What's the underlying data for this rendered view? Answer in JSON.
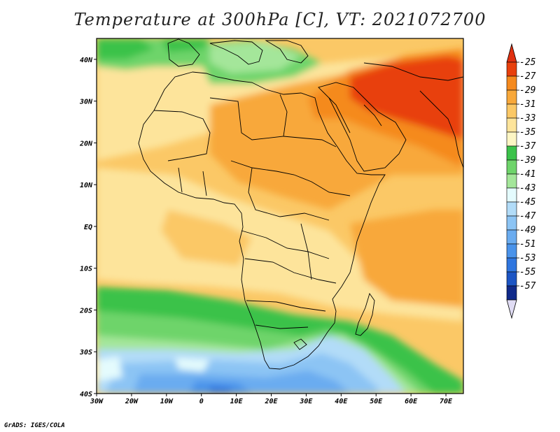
{
  "title": "Temperature at 300hPa [C], VT: 2021072700",
  "credit": "GrADS: IGES/COLA",
  "map": {
    "lon_range": [
      -30,
      75
    ],
    "lat_range": [
      -40,
      45
    ],
    "lon_ticks": [
      "30W",
      "20W",
      "10W",
      "0",
      "10E",
      "20E",
      "30E",
      "40E",
      "50E",
      "60E",
      "70E"
    ],
    "lat_ticks": [
      "40N",
      "30N",
      "20N",
      "10N",
      "EQ",
      "10S",
      "20S",
      "30S",
      "40S"
    ]
  },
  "colorbar": {
    "labels": [
      "-25",
      "-27",
      "-29",
      "-31",
      "-33",
      "-35",
      "-37",
      "-39",
      "-41",
      "-43",
      "-45",
      "-47",
      "-49",
      "-51",
      "-53",
      "-55",
      "-57"
    ],
    "colors": [
      "#e8400c",
      "#f58a1e",
      "#f8a83a",
      "#fbc866",
      "#fde49b",
      "#fdf6c4",
      "#3bc24a",
      "#6ed46a",
      "#a4e69a",
      "#e4fbfd",
      "#b2dcf8",
      "#8cc4f4",
      "#6aacf0",
      "#4a93ea",
      "#2f76df",
      "#1c55c4",
      "#102a8a"
    ],
    "arrow_top_color": "#e03010",
    "arrow_bottom_color": "#e0dcf4"
  }
}
